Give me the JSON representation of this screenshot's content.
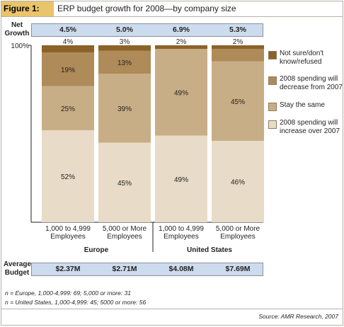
{
  "figure": {
    "label": "Figure 1:",
    "title": "ERP budget growth for 2008—by company size"
  },
  "net_growth": {
    "label_line1": "Net",
    "label_line2": "Growth",
    "values": [
      "4.5%",
      "5.0%",
      "6.9%",
      "5.3%"
    ]
  },
  "average_budget": {
    "label_line1": "Average",
    "label_line2": "Budget",
    "values": [
      "$2.37M",
      "$2.71M",
      "$4.08M",
      "$7.69M"
    ]
  },
  "chart_data": {
    "type": "bar",
    "stacked": true,
    "y_axis_top_label": "100%",
    "ylim": [
      0,
      100
    ],
    "categories": [
      "1,000 to 4,999 Employees",
      "5,000 or More Employees",
      "1,000 to 4,999 Employees",
      "5,000 or More Employees"
    ],
    "category_lines": [
      [
        "1,000 to 4,999",
        "Employees"
      ],
      [
        "5,000 or More",
        "Employees"
      ],
      [
        "1,000 to 4,999",
        "Employees"
      ],
      [
        "5,000 or More",
        "Employees"
      ]
    ],
    "groups": [
      {
        "name": "Europe",
        "columns": [
          0,
          1
        ]
      },
      {
        "name": "United States",
        "columns": [
          2,
          3
        ]
      }
    ],
    "series": [
      {
        "name": "2008 spending will increase over 2007",
        "color": "#e8dcc8",
        "values": [
          52,
          45,
          49,
          46
        ],
        "labels": [
          "52%",
          "45%",
          "49%",
          "46%"
        ]
      },
      {
        "name": "Stay the same",
        "color": "#c8ae86",
        "values": [
          25,
          39,
          49,
          45
        ],
        "labels": [
          "25%",
          "39%",
          "49%",
          "45%"
        ]
      },
      {
        "name": "2008 spending will decrease from 2007",
        "color": "#ae8b58",
        "values": [
          19,
          13,
          0,
          7
        ],
        "labels": [
          "19%",
          "13%",
          "",
          ""
        ]
      },
      {
        "name": "Not sure/don't know/refused",
        "color": "#8b6228",
        "values": [
          4,
          3,
          2,
          2
        ],
        "labels": [
          "4%",
          "3%",
          "2%",
          "2%"
        ]
      }
    ],
    "legend_placement": "right",
    "grid": false
  },
  "legend": {
    "items": [
      {
        "color": "#8b6228",
        "lines": [
          "Not sure/don't",
          "know/refused"
        ]
      },
      {
        "color": "#ae8b58",
        "lines": [
          "2008 spending will",
          "decrease from 2007"
        ]
      },
      {
        "color": "#c8ae86",
        "lines": [
          "Stay the same"
        ]
      },
      {
        "color": "#e8dcc8",
        "lines": [
          "2008 spending will",
          "increase over 2007"
        ]
      }
    ]
  },
  "notes": {
    "line1": "n = Europe, 1,000-4,999: 69; 5,000 or more: 31",
    "line2": "n = United States, 1,000-4,999: 45; 5000 or more: 56"
  },
  "source": "Source: AMR Research, 2007"
}
